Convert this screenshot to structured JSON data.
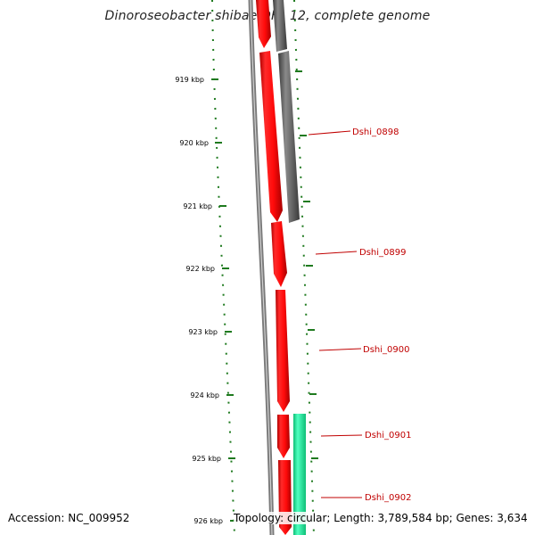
{
  "title": "Dinoroseobacter shibae DFL 12, complete genome",
  "accession": "Accession: NC_009952",
  "footer": "Topology: circular; Length: 3,789,584 bp; Genes: 3,634",
  "ruler_labels": [
    "919 kbp",
    "920 kbp",
    "921 kbp",
    "922 kbp",
    "923 kbp",
    "924 kbp",
    "925 kbp",
    "926 kbp"
  ],
  "gene_labels": [
    "Dshi_0898",
    "Dshi_0899",
    "Dshi_0900",
    "Dshi_0901",
    "Dshi_0902"
  ],
  "colors": {
    "cds": "#ff1a1a",
    "gray_feature": "#5f5f5f",
    "green_feature": "#1fe39a",
    "backbone": "#7a7a7a",
    "ruler": "#1f7a1f",
    "label": "#c00000"
  }
}
